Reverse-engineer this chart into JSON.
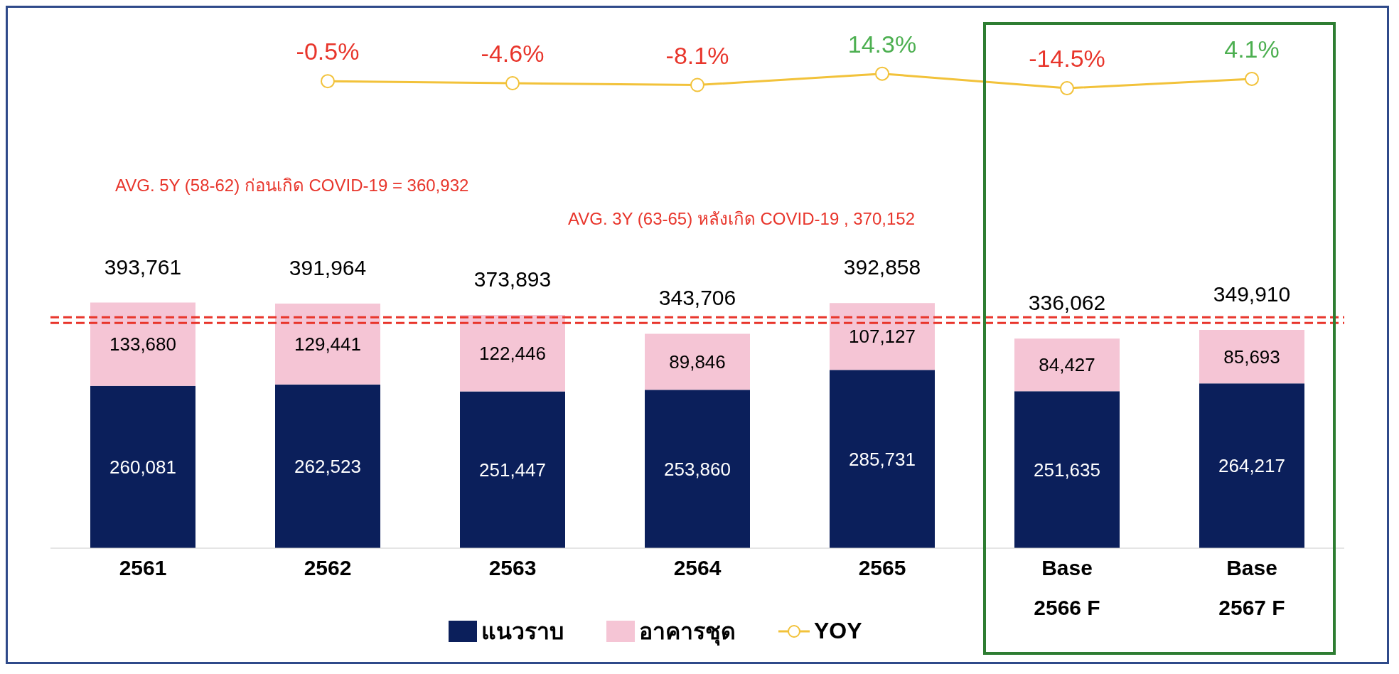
{
  "chart_data": [
    {
      "type": "line",
      "categories": [
        null,
        null,
        null,
        null,
        null,
        null,
        null
      ],
      "tick_labels": false,
      "legend": "bottom",
      "marker": "circle",
      "line_style": "solid",
      "series": [
        {
          "name": "YOY",
          "color": "#f2c23a",
          "values": [
            null,
            -0.5,
            -4.6,
            -8.1,
            14.3,
            -14.5,
            4.1
          ],
          "value_labels": [
            null,
            "-0.5%",
            "-4.6%",
            "-8.1%",
            "14.3%",
            "-14.5%",
            "4.1%"
          ]
        }
      ]
    },
    {
      "type": "bar",
      "stacked": true,
      "categories": [
        "2561",
        "2562",
        "2563",
        "2564",
        "2565",
        "Base\n2566 F",
        "Base\n2567 F"
      ],
      "series": [
        {
          "name": "แนวราบ",
          "color": "#0b1f5b",
          "values": [
            260081,
            262523,
            251447,
            253860,
            285731,
            251635,
            264217
          ],
          "value_labels": [
            "260,081",
            "262,523",
            "251,447",
            "253,860",
            "285,731",
            "251,635",
            "264,217"
          ]
        },
        {
          "name": "อาคารชุด",
          "color": "#f5c5d5",
          "values": [
            133680,
            129441,
            122446,
            89846,
            107127,
            84427,
            85693
          ],
          "value_labels": [
            "133,680",
            "129,441",
            "122,446",
            "89,846",
            "107,127",
            "84,427",
            "85,693"
          ]
        }
      ],
      "totals": [
        "393,761",
        "391,964",
        "373,893",
        "343,706",
        "392,858",
        "336,062",
        "349,910"
      ],
      "tick_labels": "x",
      "legend": "bottom",
      "ref_lines": [
        {
          "axis": "y",
          "value": 360932,
          "label": "AVG. 5Y (58-62) ก่อนเกิด COVID-19  = 360,932",
          "color": "#e8352b",
          "line_style": "dashed"
        },
        {
          "axis": "y",
          "value": 370152,
          "label": "AVG. 3Y (63-65) หลังเกิด COVID-19 ,  370,152",
          "color": "#e8352b",
          "line_style": "dashed"
        }
      ]
    }
  ]
}
